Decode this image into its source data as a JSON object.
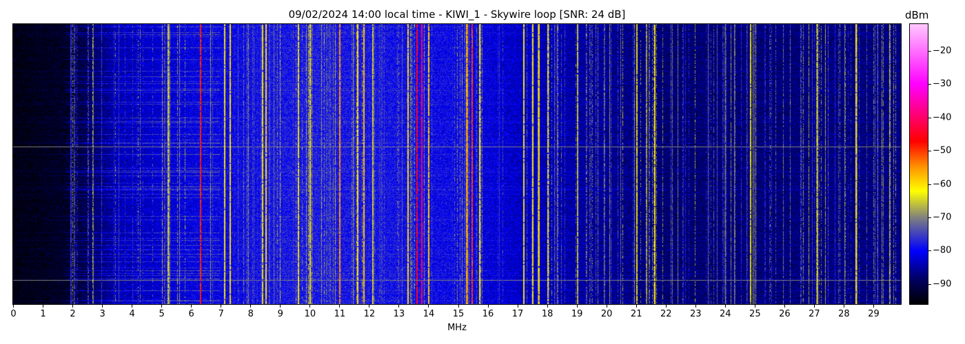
{
  "chart_data": {
    "type": "heatmap",
    "title": "09/02/2024 14:00 local time - KIWI_1 - Skywire loop [SNR: 24 dB]",
    "xlabel": "MHz",
    "ylabel": "",
    "xlim": [
      0,
      29.93
    ],
    "xticks": [
      "0",
      "1",
      "2",
      "3",
      "4",
      "5",
      "6",
      "7",
      "8",
      "9",
      "10",
      "11",
      "12",
      "13",
      "14",
      "15",
      "16",
      "17",
      "18",
      "19",
      "20",
      "21",
      "22",
      "23",
      "24",
      "25",
      "26",
      "27",
      "28",
      "29"
    ],
    "colorbar": {
      "label": "dBm",
      "range": [
        -96,
        -12
      ],
      "ticks": [
        "−20",
        "−30",
        "−40",
        "−50",
        "−60",
        "−70",
        "−80",
        "−90"
      ],
      "tick_values": [
        -20,
        -30,
        -40,
        -50,
        -60,
        -70,
        -80,
        -90
      ],
      "colormap": [
        {
          "v": -96,
          "color": "#000000"
        },
        {
          "v": -88,
          "color": "#00006a"
        },
        {
          "v": -80,
          "color": "#0000ff"
        },
        {
          "v": -70,
          "color": "#808080"
        },
        {
          "v": -62,
          "color": "#ffff00"
        },
        {
          "v": -55,
          "color": "#ff9900"
        },
        {
          "v": -47,
          "color": "#ff0000"
        },
        {
          "v": -30,
          "color": "#ff00ff"
        },
        {
          "v": -12,
          "color": "#ffc8ff"
        }
      ]
    },
    "noise_floor_dbm": [
      {
        "mhz": 0,
        "dbm": -95
      },
      {
        "mhz": 1.8,
        "dbm": -93
      },
      {
        "mhz": 3.5,
        "dbm": -84
      },
      {
        "mhz": 6,
        "dbm": -81
      },
      {
        "mhz": 10,
        "dbm": -78
      },
      {
        "mhz": 15,
        "dbm": -80
      },
      {
        "mhz": 17,
        "dbm": -83
      },
      {
        "mhz": 22,
        "dbm": -88
      },
      {
        "mhz": 29.9,
        "dbm": -87
      }
    ],
    "prominent_signals": [
      {
        "mhz": 5.2,
        "dbm": -65
      },
      {
        "mhz": 6.3,
        "dbm": -48
      },
      {
        "mhz": 7.1,
        "dbm": -62
      },
      {
        "mhz": 7.3,
        "dbm": -60
      },
      {
        "mhz": 8.4,
        "dbm": -62
      },
      {
        "mhz": 8.5,
        "dbm": -60
      },
      {
        "mhz": 9.6,
        "dbm": -63
      },
      {
        "mhz": 10.0,
        "dbm": -62
      },
      {
        "mhz": 11.0,
        "dbm": -55
      },
      {
        "mhz": 11.6,
        "dbm": -60
      },
      {
        "mhz": 11.8,
        "dbm": -58
      },
      {
        "mhz": 12.1,
        "dbm": -65
      },
      {
        "mhz": 13.3,
        "dbm": -60
      },
      {
        "mhz": 13.6,
        "dbm": -45
      },
      {
        "mhz": 13.75,
        "dbm": -40
      },
      {
        "mhz": 14.0,
        "dbm": -58
      },
      {
        "mhz": 15.3,
        "dbm": -55
      },
      {
        "mhz": 15.45,
        "dbm": -50
      },
      {
        "mhz": 15.7,
        "dbm": -62
      },
      {
        "mhz": 17.2,
        "dbm": -62
      },
      {
        "mhz": 17.5,
        "dbm": -62
      },
      {
        "mhz": 17.7,
        "dbm": -60
      },
      {
        "mhz": 18.0,
        "dbm": -64
      },
      {
        "mhz": 19.0,
        "dbm": -66
      },
      {
        "mhz": 21.0,
        "dbm": -64
      },
      {
        "mhz": 21.6,
        "dbm": -62
      },
      {
        "mhz": 24.85,
        "dbm": -64
      },
      {
        "mhz": 27.1,
        "dbm": -66
      },
      {
        "mhz": 28.4,
        "dbm": -62
      }
    ]
  }
}
